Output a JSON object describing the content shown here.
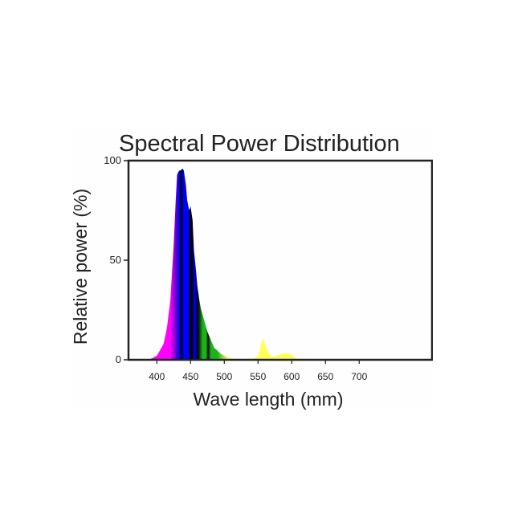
{
  "chart_data": {
    "type": "area",
    "title": "Spectral Power Distribution",
    "xlabel": "Wave length (mm)",
    "ylabel": "Relative power (%)",
    "xlim": [
      358,
      808
    ],
    "ylim": [
      0,
      100
    ],
    "x_ticks": [
      400,
      450,
      500,
      550,
      600,
      650,
      700
    ],
    "y_ticks": [
      0,
      50,
      100
    ],
    "grid": false,
    "legend": "none",
    "x": [
      380,
      390,
      400,
      410,
      415,
      420,
      425,
      428,
      430,
      433,
      435,
      438,
      440,
      443,
      445,
      448,
      450,
      453,
      455,
      458,
      460,
      463,
      465,
      470,
      475,
      480,
      485,
      490,
      495,
      500,
      505,
      510,
      515,
      520,
      525,
      530,
      535,
      540,
      545,
      550,
      553,
      555,
      558,
      560,
      563,
      565,
      570,
      575,
      580,
      585,
      590,
      595,
      600,
      605,
      610
    ],
    "values": [
      0,
      0.3,
      2,
      8,
      16,
      30,
      58,
      80,
      93,
      95,
      95,
      96,
      95,
      88,
      80,
      75,
      77,
      70,
      55,
      45,
      37,
      30,
      26,
      20,
      14,
      10,
      6,
      4.5,
      3,
      2,
      1.3,
      0.8,
      0.5,
      0.3,
      0.2,
      0.2,
      0.3,
      0.4,
      0.8,
      2,
      5,
      9,
      11,
      8,
      5,
      4,
      1.5,
      1.8,
      2.2,
      3,
      3.4,
      3.2,
      2.5,
      0.8,
      0
    ],
    "colors": {
      "violet": "#ff00ff",
      "indigo": "#6a00cc",
      "blue": "#0000ff",
      "dark": "#000000",
      "green": "#1ab31a",
      "yellow": "#ffff55",
      "axis": "#222222"
    }
  }
}
